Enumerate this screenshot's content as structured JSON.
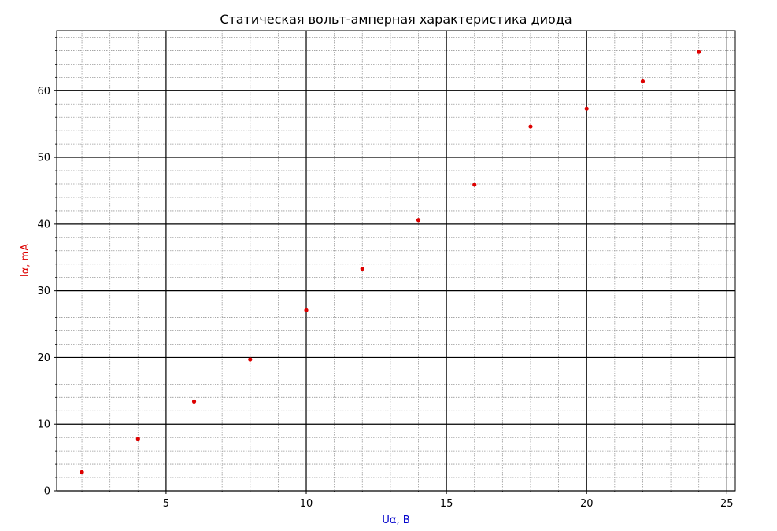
{
  "chart_data": {
    "type": "scatter",
    "title": "Статическая вольт-амперная характеристика диода",
    "xlabel": "Uα, В",
    "ylabel": "Iα, mA",
    "xlabel_color": "#0000cc",
    "ylabel_color": "#dd0000",
    "point_color": "#dd0000",
    "xlim": [
      1.1,
      25.3
    ],
    "ylim": [
      0,
      69
    ],
    "x_ticks": [
      5,
      10,
      15,
      20,
      25
    ],
    "y_ticks": [
      0,
      10,
      20,
      30,
      40,
      50,
      60
    ],
    "x_tick_labels": [
      "5",
      "10",
      "15",
      "20",
      "25"
    ],
    "y_tick_labels": [
      "0",
      "10",
      "20",
      "30",
      "40",
      "50",
      "60"
    ],
    "x_minor_step": 1,
    "y_minor_step": 2,
    "grid": true,
    "series": [
      {
        "x": [
          2,
          4,
          6,
          8,
          10,
          12,
          14,
          16,
          18,
          20,
          22,
          24
        ],
        "y": [
          2.8,
          7.8,
          13.4,
          19.7,
          27.1,
          33.3,
          40.6,
          45.9,
          54.6,
          57.3,
          61.4,
          65.8
        ]
      }
    ]
  }
}
